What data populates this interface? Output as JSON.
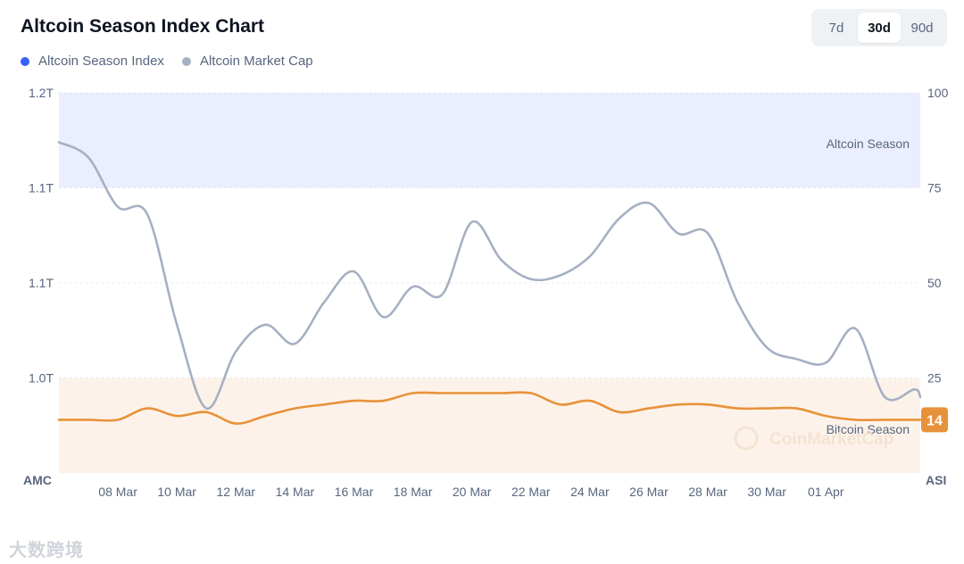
{
  "header": {
    "title": "Altcoin Season Index Chart",
    "legend": [
      {
        "label": "Altcoin Season Index",
        "color": "#3861fb"
      },
      {
        "label": "Altcoin Market Cap",
        "color": "#a6b0c3"
      }
    ],
    "range_tabs": [
      {
        "label": "7d",
        "active": false
      },
      {
        "label": "30d",
        "active": true
      },
      {
        "label": "90d",
        "active": false
      }
    ]
  },
  "chart_data": {
    "type": "line",
    "left_axis_title": "AMC",
    "right_axis_title": "ASI",
    "left_ticks": [
      "1.2T",
      "1.1T",
      "1.1T",
      "1.0T"
    ],
    "right_ticks": [
      "100",
      "75",
      "50",
      "25"
    ],
    "right_ylim": [
      0,
      100
    ],
    "grid": true,
    "x_ticks": [
      "08 Mar",
      "10 Mar",
      "12 Mar",
      "14 Mar",
      "16 Mar",
      "18 Mar",
      "20 Mar",
      "22 Mar",
      "24 Mar",
      "26 Mar",
      "28 Mar",
      "30 Mar",
      "01 Apr"
    ],
    "x_range_days": [
      6,
      35.2
    ],
    "zones": [
      {
        "label": "Altcoin Season",
        "from": 75,
        "to": 100,
        "color": "#ebeefe"
      },
      {
        "label": "Bitcoin Season",
        "from": 0,
        "to": 25,
        "color": "#fdf2e9"
      }
    ],
    "current_value_badge": "14",
    "series": [
      {
        "name": "Altcoin Season Index",
        "color": "#e7923a",
        "x": [
          6,
          7,
          8,
          9,
          10,
          11,
          12,
          13,
          14,
          15,
          16,
          17,
          18,
          19,
          20,
          21,
          22,
          23,
          24,
          25,
          26,
          27,
          28,
          29,
          30,
          31,
          32,
          33,
          34,
          35,
          35.2
        ],
        "y": [
          14,
          14,
          14,
          17,
          15,
          16,
          13,
          15,
          17,
          18,
          19,
          19,
          21,
          21,
          21,
          21,
          21,
          18,
          19,
          16,
          17,
          18,
          18,
          17,
          17,
          17,
          15,
          14,
          14,
          14,
          14
        ]
      },
      {
        "name": "Altcoin Market Cap",
        "color": "#a6b0c3",
        "x": [
          6,
          7,
          8,
          9,
          10,
          11,
          12,
          13,
          14,
          15,
          16,
          17,
          18,
          19,
          20,
          21,
          22,
          23,
          24,
          25,
          26,
          27,
          28,
          29,
          30,
          31,
          32,
          33,
          34,
          35,
          35.2
        ],
        "y": [
          87,
          83,
          70,
          68,
          39,
          17,
          32,
          39,
          34,
          45,
          53,
          41,
          49,
          47,
          66,
          56,
          51,
          52,
          57,
          67,
          71,
          63,
          63,
          45,
          33,
          30,
          29,
          38,
          20,
          22,
          20
        ]
      }
    ]
  },
  "watermark": "CoinMarketCap",
  "footer_mark": "大数跨境"
}
